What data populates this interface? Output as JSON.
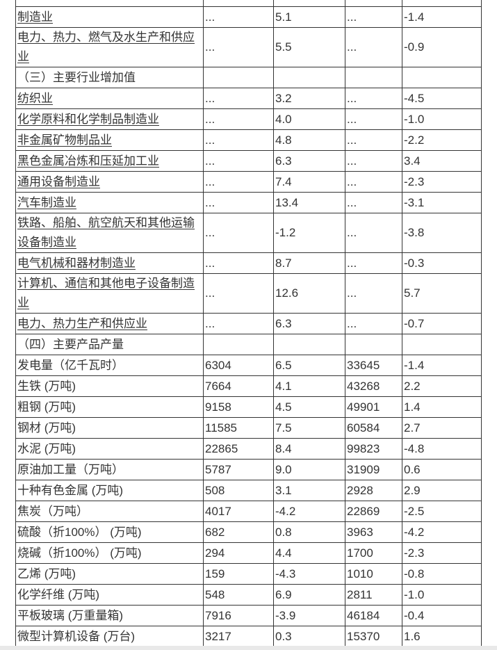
{
  "page": {
    "background_color": "#ffffff",
    "bottom_strip_color": "#e9e9e9"
  },
  "table": {
    "border_color": "#333333",
    "text_color": "#333333",
    "rows": [
      {
        "name": "制造业",
        "underline": true,
        "section": false,
        "values": [
          "...",
          "5.1",
          "...",
          "-1.4"
        ]
      },
      {
        "name": "电力、热力、燃气及水生产和供应业",
        "underline": true,
        "section": false,
        "values": [
          "...",
          "5.5",
          "...",
          "-0.9"
        ]
      },
      {
        "name": "（三）主要行业增加值",
        "underline": false,
        "section": true,
        "values": [
          "",
          "",
          "",
          ""
        ]
      },
      {
        "name": "纺织业",
        "underline": true,
        "section": false,
        "values": [
          "...",
          "3.2",
          "...",
          "-4.5"
        ]
      },
      {
        "name": "化学原料和化学制品制造业",
        "underline": true,
        "section": false,
        "values": [
          "...",
          "4.0",
          "...",
          "-1.0"
        ]
      },
      {
        "name": "非金属矿物制品业",
        "underline": true,
        "section": false,
        "values": [
          "...",
          "4.8",
          "...",
          "-2.2"
        ]
      },
      {
        "name": "黑色金属冶炼和压延加工业",
        "underline": true,
        "section": false,
        "values": [
          "...",
          "6.3",
          "...",
          "3.4"
        ]
      },
      {
        "name": "通用设备制造业",
        "underline": true,
        "section": false,
        "values": [
          "...",
          "7.4",
          "...",
          "-2.3"
        ]
      },
      {
        "name": "汽车制造业",
        "underline": true,
        "section": false,
        "values": [
          "...",
          "13.4",
          "...",
          "-3.1"
        ]
      },
      {
        "name": "铁路、船舶、航空航天和其他运输设备制造业",
        "underline": true,
        "section": false,
        "values": [
          "...",
          "-1.2",
          "...",
          "-3.8"
        ]
      },
      {
        "name": "电气机械和器材制造业",
        "underline": true,
        "section": false,
        "values": [
          "...",
          "8.7",
          "...",
          "-0.3"
        ]
      },
      {
        "name": "计算机、通信和其他电子设备制造业",
        "underline": true,
        "section": false,
        "values": [
          "...",
          "12.6",
          "...",
          "5.7"
        ]
      },
      {
        "name": "电力、热力生产和供应业",
        "underline": true,
        "section": false,
        "values": [
          "...",
          "6.3",
          "...",
          "-0.7"
        ]
      },
      {
        "name": "（四）主要产品产量",
        "underline": false,
        "section": true,
        "values": [
          "",
          "",
          "",
          ""
        ]
      },
      {
        "name": "发电量（亿千瓦时）",
        "underline": false,
        "section": false,
        "values": [
          "6304",
          "6.5",
          "33645",
          "-1.4"
        ]
      },
      {
        "name": "生铁 (万吨)",
        "underline": false,
        "section": false,
        "values": [
          "7664",
          "4.1",
          "43268",
          "2.2"
        ]
      },
      {
        "name": "粗钢 (万吨)",
        "underline": false,
        "section": false,
        "values": [
          "9158",
          "4.5",
          "49901",
          "1.4"
        ]
      },
      {
        "name": "钢材 (万吨)",
        "underline": false,
        "section": false,
        "values": [
          "11585",
          "7.5",
          "60584",
          "2.7"
        ]
      },
      {
        "name": "水泥 (万吨)",
        "underline": false,
        "section": false,
        "values": [
          "22865",
          "8.4",
          "99823",
          "-4.8"
        ]
      },
      {
        "name": "原油加工量（万吨）",
        "underline": false,
        "section": false,
        "values": [
          "5787",
          "9.0",
          "31909",
          "0.6"
        ]
      },
      {
        "name": "十种有色金属 (万吨)",
        "underline": false,
        "section": false,
        "values": [
          "508",
          "3.1",
          "2928",
          "2.9"
        ]
      },
      {
        "name": "焦炭（万吨）",
        "underline": false,
        "section": false,
        "values": [
          "4017",
          "-4.2",
          "22869",
          "-2.5"
        ]
      },
      {
        "name": "硫酸（折100%） (万吨)",
        "underline": false,
        "section": false,
        "values": [
          "682",
          "0.8",
          "3963",
          "-4.2"
        ]
      },
      {
        "name": "烧碱（折100%） (万吨)",
        "underline": false,
        "section": false,
        "values": [
          "294",
          "4.4",
          "1700",
          "-2.3"
        ]
      },
      {
        "name": "乙烯 (万吨)",
        "underline": false,
        "section": false,
        "values": [
          "159",
          "-4.3",
          "1010",
          "-0.8"
        ]
      },
      {
        "name": "化学纤维 (万吨)",
        "underline": false,
        "section": false,
        "values": [
          "548",
          "6.9",
          "2811",
          "-1.0"
        ]
      },
      {
        "name": "平板玻璃 (万重量箱)",
        "underline": false,
        "section": false,
        "values": [
          "7916",
          "-3.9",
          "46184",
          "-0.4"
        ]
      },
      {
        "name": "微型计算机设备 (万台)",
        "underline": false,
        "section": false,
        "values": [
          "3217",
          "0.3",
          "15370",
          "1.6"
        ]
      }
    ]
  }
}
